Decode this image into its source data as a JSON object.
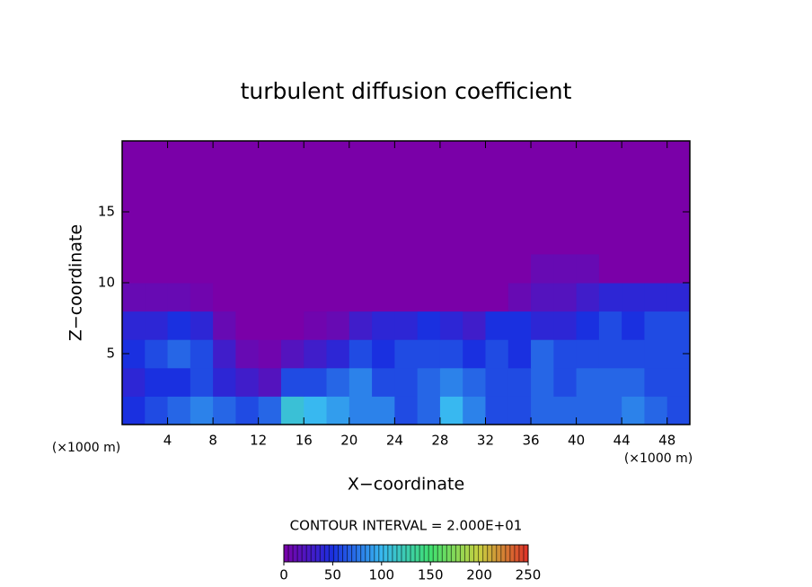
{
  "chart_data": {
    "type": "heatmap",
    "title": "turbulent diffusion coefficient",
    "x_label": "X−coordinate",
    "y_label": "Z−coordinate",
    "x_unit": "(×1000 m)",
    "y_unit": "(×1000 m)",
    "xlim": [
      0,
      50
    ],
    "ylim": [
      0,
      20
    ],
    "xticks": [
      4,
      8,
      12,
      16,
      20,
      24,
      28,
      32,
      36,
      40,
      44,
      48
    ],
    "yticks": [
      5,
      10,
      15
    ],
    "x": [
      1,
      3,
      5,
      7,
      9,
      11,
      13,
      15,
      17,
      19,
      21,
      23,
      25,
      27,
      29,
      31,
      33,
      35,
      37,
      39,
      41,
      43,
      45,
      47,
      49
    ],
    "y": [
      1,
      3,
      5,
      7,
      9,
      11
    ],
    "z": [
      [
        50,
        60,
        70,
        80,
        70,
        60,
        70,
        110,
        100,
        90,
        80,
        80,
        60,
        70,
        100,
        80,
        60,
        60,
        70,
        70,
        70,
        70,
        80,
        70,
        60
      ],
      [
        40,
        50,
        50,
        60,
        40,
        30,
        20,
        60,
        60,
        70,
        80,
        60,
        60,
        70,
        80,
        70,
        60,
        60,
        70,
        60,
        70,
        70,
        70,
        60,
        60
      ],
      [
        50,
        60,
        70,
        60,
        30,
        10,
        5,
        20,
        30,
        40,
        60,
        50,
        60,
        60,
        60,
        50,
        60,
        50,
        70,
        60,
        60,
        60,
        60,
        60,
        60
      ],
      [
        40,
        40,
        50,
        40,
        10,
        0,
        0,
        0,
        5,
        10,
        30,
        40,
        40,
        50,
        40,
        30,
        50,
        50,
        40,
        40,
        50,
        60,
        50,
        60,
        60
      ],
      [
        10,
        10,
        10,
        5,
        0,
        0,
        0,
        0,
        0,
        0,
        0,
        0,
        0,
        0,
        0,
        0,
        0,
        10,
        20,
        20,
        30,
        40,
        40,
        40,
        40
      ],
      [
        0,
        0,
        0,
        0,
        0,
        0,
        0,
        0,
        0,
        0,
        0,
        0,
        0,
        0,
        0,
        0,
        0,
        0,
        10,
        10,
        10,
        0,
        0,
        0,
        0
      ]
    ],
    "colorbar_label": "CONTOUR INTERVAL = 2.000E+01",
    "zlim": [
      0,
      250
    ],
    "zticks": [
      0,
      50,
      100,
      150,
      200,
      250
    ],
    "colors": [
      "#7a00a8",
      "#1a30e0",
      "#38b8f0",
      "#40e070",
      "#c8d040",
      "#e03028"
    ]
  }
}
